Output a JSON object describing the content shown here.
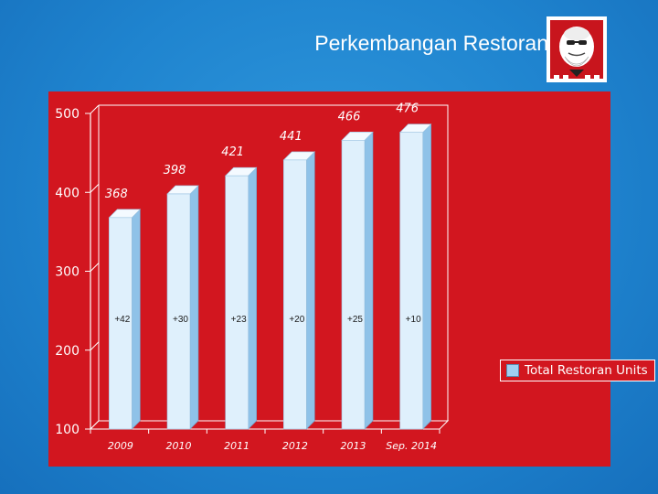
{
  "slide": {
    "title": "Perkembangan Restoran",
    "logo_icon": "colonel-sanders-logo"
  },
  "colors": {
    "background": "#1f84cf",
    "panel": "#d2161f",
    "bar_front": "#dff0fc",
    "bar_side": "#8fc2e8",
    "bar_top": "#f4faff",
    "text": "#ffffff"
  },
  "chart_data": {
    "type": "bar",
    "categories": [
      "2009",
      "2010",
      "2011",
      "2012",
      "2013",
      "Sep. 2014"
    ],
    "series": [
      {
        "name": "Total Restoran Units",
        "values": [
          368,
          398,
          421,
          441,
          466,
          476
        ],
        "value_labels": [
          "368",
          "398",
          "421",
          "441",
          "466",
          "476"
        ],
        "growth_labels": [
          "+42",
          "+30",
          "+23",
          "+20",
          "+25",
          "+10"
        ]
      }
    ],
    "ylim": [
      100,
      500
    ],
    "yticks": [
      "100",
      "200",
      "300",
      "400",
      "500"
    ],
    "grid": false,
    "legend_position": "right"
  }
}
